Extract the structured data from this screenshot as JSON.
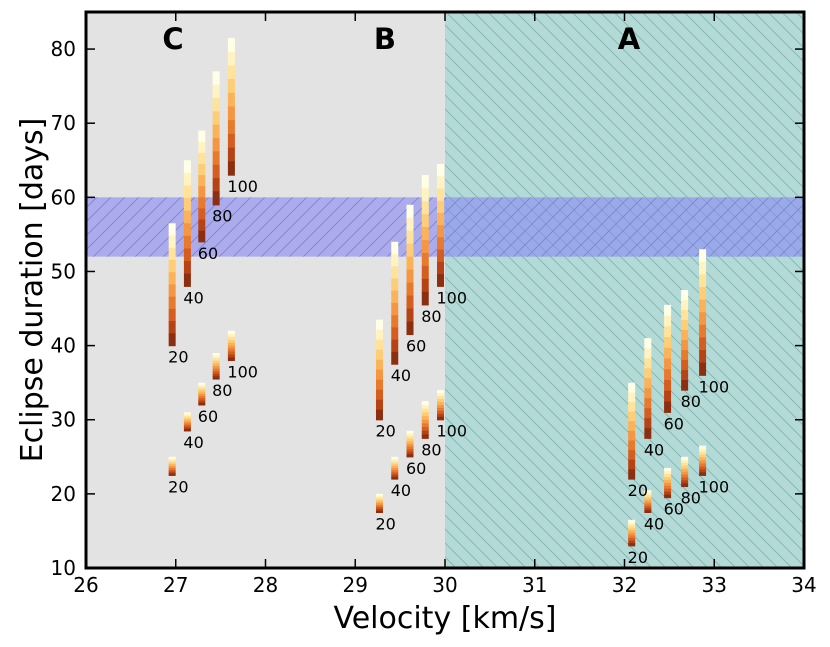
{
  "chart_data": {
    "type": "bar",
    "title": "",
    "xlabel": "Velocity [km/s]",
    "ylabel": "Eclipse duration [days]",
    "xlim": [
      26,
      34
    ],
    "ylim": [
      10,
      85
    ],
    "x_ticks": [
      "26",
      "27",
      "28",
      "29",
      "30",
      "31",
      "32",
      "33",
      "34"
    ],
    "y_ticks": [
      "10",
      "20",
      "30",
      "40",
      "50",
      "60",
      "70",
      "80"
    ],
    "grid": false,
    "legend": "none",
    "regions": [
      {
        "label": "C",
        "x_range": [
          26,
          30
        ],
        "color": "#e3e3e3",
        "hatched": false
      },
      {
        "label": "B",
        "x_range": [
          26,
          30
        ],
        "color": "#e3e3e3",
        "hatched": false
      },
      {
        "label": "A",
        "x_range": [
          30,
          34
        ],
        "color": "#b3dad7",
        "hatched": true
      }
    ],
    "label_positions": {
      "C": {
        "x": 26.97,
        "y": 81.5
      },
      "B": {
        "x": 29.33,
        "y": 81.5
      },
      "A": {
        "x": 32.05,
        "y": 81.5
      }
    },
    "horizontal_band": {
      "y_range": [
        52,
        60
      ],
      "color": "#8a8af2",
      "hatched": true
    },
    "colormap": [
      "#ffffe8",
      "#fff3c2",
      "#ffe39a",
      "#fecd78",
      "#fbb35a",
      "#f59642",
      "#e87a2e",
      "#d45d1f",
      "#b54315",
      "#8c2f10"
    ],
    "groups": [
      {
        "region": "C",
        "set": 1,
        "series": [
          {
            "label": "20",
            "x": 26.96,
            "y_min": 40,
            "y_max": 56.5
          },
          {
            "label": "40",
            "x": 27.13,
            "y_min": 48,
            "y_max": 65
          },
          {
            "label": "60",
            "x": 27.29,
            "y_min": 54,
            "y_max": 69
          },
          {
            "label": "80",
            "x": 27.45,
            "y_min": 59,
            "y_max": 77
          },
          {
            "label": "100",
            "x": 27.62,
            "y_min": 63,
            "y_max": 81.5
          }
        ]
      },
      {
        "region": "C",
        "set": 2,
        "series": [
          {
            "label": "20",
            "x": 26.96,
            "y_min": 22.5,
            "y_max": 25
          },
          {
            "label": "40",
            "x": 27.13,
            "y_min": 28.5,
            "y_max": 31
          },
          {
            "label": "60",
            "x": 27.29,
            "y_min": 32,
            "y_max": 35
          },
          {
            "label": "80",
            "x": 27.45,
            "y_min": 35.5,
            "y_max": 39
          },
          {
            "label": "100",
            "x": 27.62,
            "y_min": 38,
            "y_max": 42
          }
        ]
      },
      {
        "region": "B",
        "set": 1,
        "series": [
          {
            "label": "20",
            "x": 29.27,
            "y_min": 30,
            "y_max": 43.5
          },
          {
            "label": "40",
            "x": 29.44,
            "y_min": 37.5,
            "y_max": 54
          },
          {
            "label": "60",
            "x": 29.61,
            "y_min": 41.5,
            "y_max": 59
          },
          {
            "label": "80",
            "x": 29.78,
            "y_min": 45.5,
            "y_max": 63
          },
          {
            "label": "100",
            "x": 29.95,
            "y_min": 48,
            "y_max": 64.5
          }
        ]
      },
      {
        "region": "B",
        "set": 2,
        "series": [
          {
            "label": "20",
            "x": 29.27,
            "y_min": 17.5,
            "y_max": 20
          },
          {
            "label": "40",
            "x": 29.44,
            "y_min": 22,
            "y_max": 25
          },
          {
            "label": "60",
            "x": 29.61,
            "y_min": 25,
            "y_max": 28.5
          },
          {
            "label": "80",
            "x": 29.78,
            "y_min": 27.5,
            "y_max": 32.5
          },
          {
            "label": "100",
            "x": 29.95,
            "y_min": 30,
            "y_max": 34
          }
        ]
      },
      {
        "region": "A",
        "set": 1,
        "series": [
          {
            "label": "20",
            "x": 32.08,
            "y_min": 22,
            "y_max": 35
          },
          {
            "label": "40",
            "x": 32.26,
            "y_min": 27.5,
            "y_max": 41
          },
          {
            "label": "60",
            "x": 32.48,
            "y_min": 31,
            "y_max": 45.5
          },
          {
            "label": "80",
            "x": 32.67,
            "y_min": 34,
            "y_max": 47.5
          },
          {
            "label": "100",
            "x": 32.87,
            "y_min": 36,
            "y_max": 53
          }
        ]
      },
      {
        "region": "A",
        "set": 2,
        "series": [
          {
            "label": "20",
            "x": 32.08,
            "y_min": 13,
            "y_max": 16.5
          },
          {
            "label": "40",
            "x": 32.26,
            "y_min": 17.5,
            "y_max": 20.5
          },
          {
            "label": "60",
            "x": 32.48,
            "y_min": 19.5,
            "y_max": 23.5
          },
          {
            "label": "80",
            "x": 32.67,
            "y_min": 21,
            "y_max": 25
          },
          {
            "label": "100",
            "x": 32.87,
            "y_min": 22.5,
            "y_max": 26.5
          }
        ]
      }
    ]
  }
}
